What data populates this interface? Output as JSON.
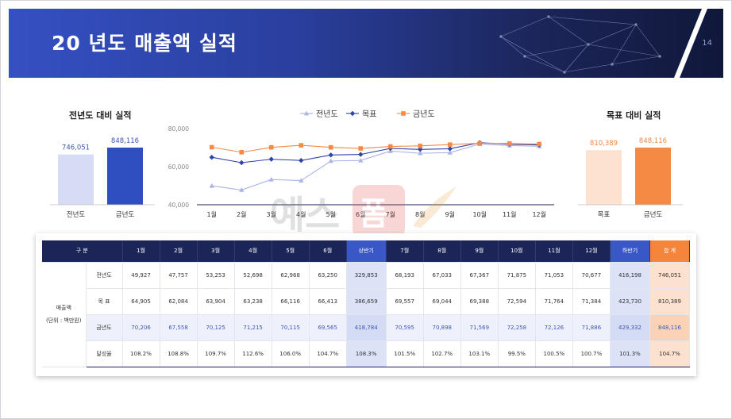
{
  "header": {
    "title": "20  년도 매출액 실적",
    "page_number": "14"
  },
  "left_panel": {
    "title": "전년도 대비 실적",
    "bars": [
      {
        "label": "전년도",
        "value": 746051,
        "value_text": "746,051",
        "color": "#d6dcf5",
        "text_color": "#3e56b8"
      },
      {
        "label": "금년도",
        "value": 848116,
        "value_text": "848,116",
        "color": "#2f4fc0",
        "text_color": "#3e56b8"
      }
    ]
  },
  "right_panel": {
    "title": "목표 대비 실적",
    "bars": [
      {
        "label": "목표",
        "value": 810389,
        "value_text": "810,389",
        "color": "#fde2d0",
        "text_color": "#f08a4b"
      },
      {
        "label": "금년도",
        "value": 848116,
        "value_text": "848,116",
        "color": "#f58a45",
        "text_color": "#f08a4b"
      }
    ]
  },
  "chart_data": {
    "type": "line",
    "categories": [
      "1월",
      "2월",
      "3월",
      "4월",
      "5월",
      "6월",
      "7월",
      "8월",
      "9월",
      "10월",
      "11월",
      "12월"
    ],
    "ylim": [
      40000,
      80000
    ],
    "yticks": [
      "40,000",
      "60,000",
      "80,000"
    ],
    "yticks_values": [
      40000,
      60000,
      80000
    ],
    "legend": "top",
    "series": [
      {
        "name": "전년도",
        "color": "#aab4e6",
        "marker": "triangle",
        "values": [
          49927,
          47757,
          53253,
          52698,
          62968,
          63250,
          68193,
          67033,
          67367,
          71875,
          71053,
          70677
        ]
      },
      {
        "name": "목표",
        "color": "#2f45a8",
        "marker": "diamond",
        "values": [
          64905,
          62084,
          63904,
          63238,
          66116,
          66413,
          69557,
          69044,
          69388,
          72594,
          71764,
          71384
        ]
      },
      {
        "name": "금년도",
        "color": "#f58a45",
        "marker": "square",
        "values": [
          70206,
          67558,
          70125,
          71215,
          70115,
          69565,
          70595,
          70898,
          71569,
          72258,
          72126,
          71886
        ]
      }
    ]
  },
  "table": {
    "headers": [
      "구  분",
      "",
      "1월",
      "2월",
      "3월",
      "4월",
      "5월",
      "6월",
      "상반기",
      "7월",
      "8월",
      "9월",
      "10월",
      "11월",
      "12월",
      "하반기",
      "합  계"
    ],
    "group_label_1": "매출액",
    "group_label_2": "(단위 : 백만원)",
    "rows": [
      {
        "label": "전년도",
        "cells": [
          "49,927",
          "47,757",
          "53,253",
          "52,698",
          "62,968",
          "63,250",
          "329,853",
          "68,193",
          "67,033",
          "67,367",
          "71,875",
          "71,053",
          "70,677",
          "416,198",
          "746,051"
        ]
      },
      {
        "label": "목  표",
        "cells": [
          "64,905",
          "62,084",
          "63,904",
          "63,238",
          "66,116",
          "66,413",
          "386,659",
          "69,557",
          "69,044",
          "69,388",
          "72,594",
          "71,764",
          "71,384",
          "423,730",
          "810,389"
        ]
      },
      {
        "label": "금년도",
        "cells": [
          "70,206",
          "67,558",
          "70,125",
          "71,215",
          "70,115",
          "69,565",
          "418,784",
          "70,595",
          "70,898",
          "71,569",
          "72,258",
          "72,126",
          "71,886",
          "429,332",
          "848,116"
        ]
      },
      {
        "label": "달성율",
        "cells": [
          "108.2%",
          "108.8%",
          "109.7%",
          "112.6%",
          "106.0%",
          "104.7%",
          "108.3%",
          "101.5%",
          "102.7%",
          "103.1%",
          "99.5%",
          "100.5%",
          "100.7%",
          "101.3%",
          "104.7%"
        ]
      }
    ]
  }
}
